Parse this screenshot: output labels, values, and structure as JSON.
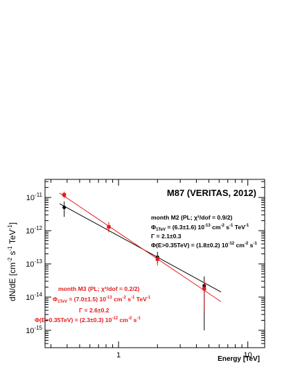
{
  "chart_data": {
    "type": "scatter",
    "title": "M87 (VERITAS, 2012)",
    "xlabel": "Energy [TeV]",
    "ylabel": "dN/dE [cm$^{-2}$ s$^{-1}$ TeV$^{-1}$]",
    "ylabel_parts": {
      "main": "dN/dE [cm",
      "sup1": "-2",
      "mid1": " s",
      "sup2": "-1",
      "mid2": " TeV",
      "sup3": "-1",
      "end": "]"
    },
    "x_scale": "log",
    "y_scale": "log",
    "xlim": [
      0.27,
      13.5
    ],
    "ylim": [
      3e-16,
      3.5e-11
    ],
    "x_ticks": [
      {
        "value": 1,
        "label": "1"
      },
      {
        "value": 10,
        "label": "10"
      }
    ],
    "y_ticks": [
      {
        "value": 1e-11,
        "base": "10",
        "exp": "-11"
      },
      {
        "value": 1e-12,
        "base": "10",
        "exp": "-12"
      },
      {
        "value": 1e-13,
        "base": "10",
        "exp": "-13"
      },
      {
        "value": 1e-14,
        "base": "10",
        "exp": "-14"
      },
      {
        "value": 1e-15,
        "base": "10",
        "exp": "-15"
      }
    ],
    "grid": false,
    "series": [
      {
        "key": "M2",
        "color": "#000000",
        "marker": "circle",
        "points": [
          {
            "x": 0.38,
            "y": 5e-12,
            "ylo": 2.6e-12,
            "yhi": 7.6e-12
          },
          {
            "x": 0.84,
            "y": 1.3e-12,
            "ylo": 9e-13,
            "yhi": 1.8e-12
          },
          {
            "x": 2.0,
            "y": 1.6e-13,
            "ylo": 1.05e-13,
            "yhi": 2.3e-13
          },
          {
            "x": 4.6,
            "y": 2.2e-14,
            "ylo": 1e-15,
            "yhi": 4.2e-14
          }
        ],
        "fit": {
          "x": [
            0.35,
            6.2
          ],
          "y": [
            6.5e-12,
            1.43e-14
          ]
        },
        "annotation": {
          "line1": "month M2 (PL; χ²/dof = 0.9/2)",
          "line2_a": "Φ",
          "line2_sub": "1TeV",
          "line2_b": " = (6.3±1.6) 10",
          "line2_sup1": "-13",
          "line2_c": " cm",
          "line2_sup2": "-2",
          "line2_d": " s",
          "line2_sup3": "-1",
          "line2_e": " TeV",
          "line2_sup4": "-1",
          "line3": "Γ = 2.1±0.3",
          "line4_a": "Φ(E>0.35TeV) = (1.8±0.2) 10",
          "line4_sup1": "-12",
          "line4_b": " cm",
          "line4_sup2": "-2",
          "line4_c": " s",
          "line4_sup3": "-1"
        }
      },
      {
        "key": "M3",
        "color": "#e31a1c",
        "marker": "square",
        "points": [
          {
            "x": 0.38,
            "y": 1.2e-11,
            "ylo": 9.5e-12,
            "yhi": 1.5e-11
          },
          {
            "x": 0.84,
            "y": 1.3e-12,
            "ylo": 9e-13,
            "yhi": 1.8e-12
          },
          {
            "x": 2.0,
            "y": 1.4e-13,
            "ylo": 9e-14,
            "yhi": 1.9e-13
          },
          {
            "x": 4.6,
            "y": 1.8e-14,
            "ylo": 3.8e-15,
            "yhi": 3.2e-14
          }
        ],
        "fit": {
          "x": [
            0.35,
            6.2
          ],
          "y": [
            1.35e-11,
            7.3e-15
          ]
        },
        "annotation": {
          "line1": "month M3 (PL; χ²/dof = 0.2/2)",
          "line2_a": "Φ",
          "line2_sub": "1TeV",
          "line2_b": " = (7.0±1.5) 10",
          "line2_sup1": "-13",
          "line2_c": " cm",
          "line2_sup2": "-2",
          "line2_d": " s",
          "line2_sup3": "-1",
          "line2_e": " TeV",
          "line2_sup4": "-1",
          "line3": "Γ = 2.6±0.2",
          "line4_a": "Φ(E>0.35TeV) = (2.3±0.3) 10",
          "line4_sup1": "-12",
          "line4_b": " cm",
          "line4_sup2": "-2",
          "line4_c": " s",
          "line4_sup3": "-1"
        }
      }
    ]
  }
}
